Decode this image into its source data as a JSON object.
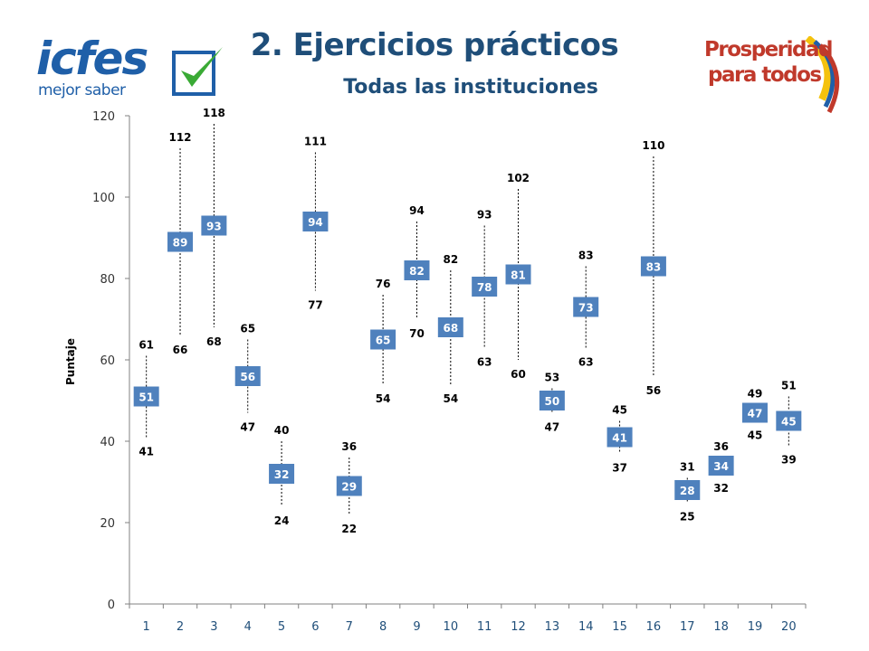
{
  "header": {
    "title": "2. Ejercicios prácticos",
    "subtitle": "Todas las instituciones"
  },
  "logos": {
    "left_brand": "icfes",
    "left_tagline": "mejor saber",
    "right_line1": "Prosperidad",
    "right_line2": "para todos"
  },
  "colors": {
    "title": "#1F4E79",
    "box_fill": "#4F81BD",
    "box_text": "#FFFFFF",
    "whisker": "#000000",
    "axis": "#808080",
    "logo_blue": "#1F5FA8",
    "logo_green": "#3AAA35",
    "logo_red": "#C0392B",
    "logo_yellow": "#F4C20D"
  },
  "chart_data": {
    "type": "scatter",
    "ylabel": "Puntaje",
    "xlabel": "",
    "ylim": [
      0,
      120
    ],
    "yticks": [
      0,
      20,
      40,
      60,
      80,
      100,
      120
    ],
    "grid": false,
    "categories": [
      "1",
      "2",
      "3",
      "4",
      "5",
      "6",
      "7",
      "8",
      "9",
      "10",
      "11",
      "12",
      "13",
      "14",
      "15",
      "16",
      "17",
      "18",
      "19",
      "20"
    ],
    "max": [
      61,
      112,
      118,
      65,
      40,
      111,
      36,
      76,
      94,
      82,
      93,
      102,
      53,
      83,
      45,
      110,
      31,
      36,
      49,
      51
    ],
    "mean": [
      51,
      89,
      93,
      56,
      32,
      94,
      29,
      65,
      82,
      68,
      78,
      81,
      50,
      73,
      41,
      83,
      28,
      34,
      47,
      45
    ],
    "min": [
      41,
      66,
      68,
      47,
      24,
      77,
      22,
      54,
      70,
      54,
      63,
      60,
      47,
      63,
      37,
      56,
      25,
      32,
      45,
      39
    ]
  }
}
